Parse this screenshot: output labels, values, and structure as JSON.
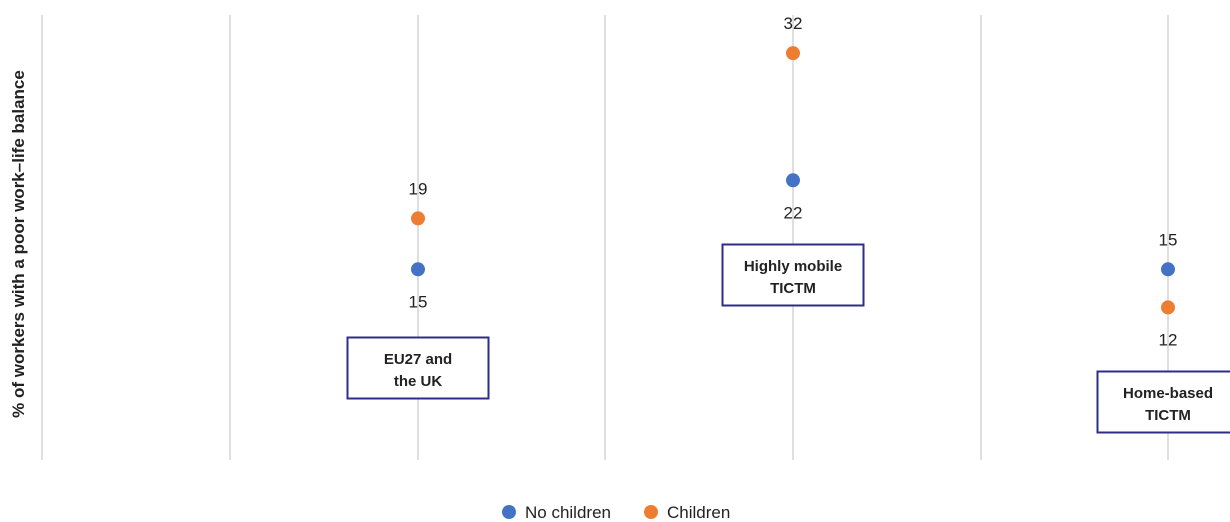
{
  "chart_data": {
    "type": "scatter",
    "title": "",
    "xlabel": "",
    "ylabel": "% of workers with a poor work–life balance",
    "ylim": [
      0,
      35
    ],
    "grid": true,
    "legend_position": "bottom",
    "categories": [
      "EU27 and the UK",
      "Highly mobile TICTM",
      "Home-based TICTM"
    ],
    "category_label_lines": [
      [
        "EU27 and",
        "the UK"
      ],
      [
        "Highly mobile",
        "TICTM"
      ],
      [
        "Home-based",
        "TICTM"
      ]
    ],
    "series": [
      {
        "name": "No children",
        "color": "#4472C4",
        "values": [
          15,
          22,
          15
        ]
      },
      {
        "name": "Children",
        "color": "#ED7D31",
        "values": [
          19,
          32,
          12
        ]
      }
    ]
  }
}
